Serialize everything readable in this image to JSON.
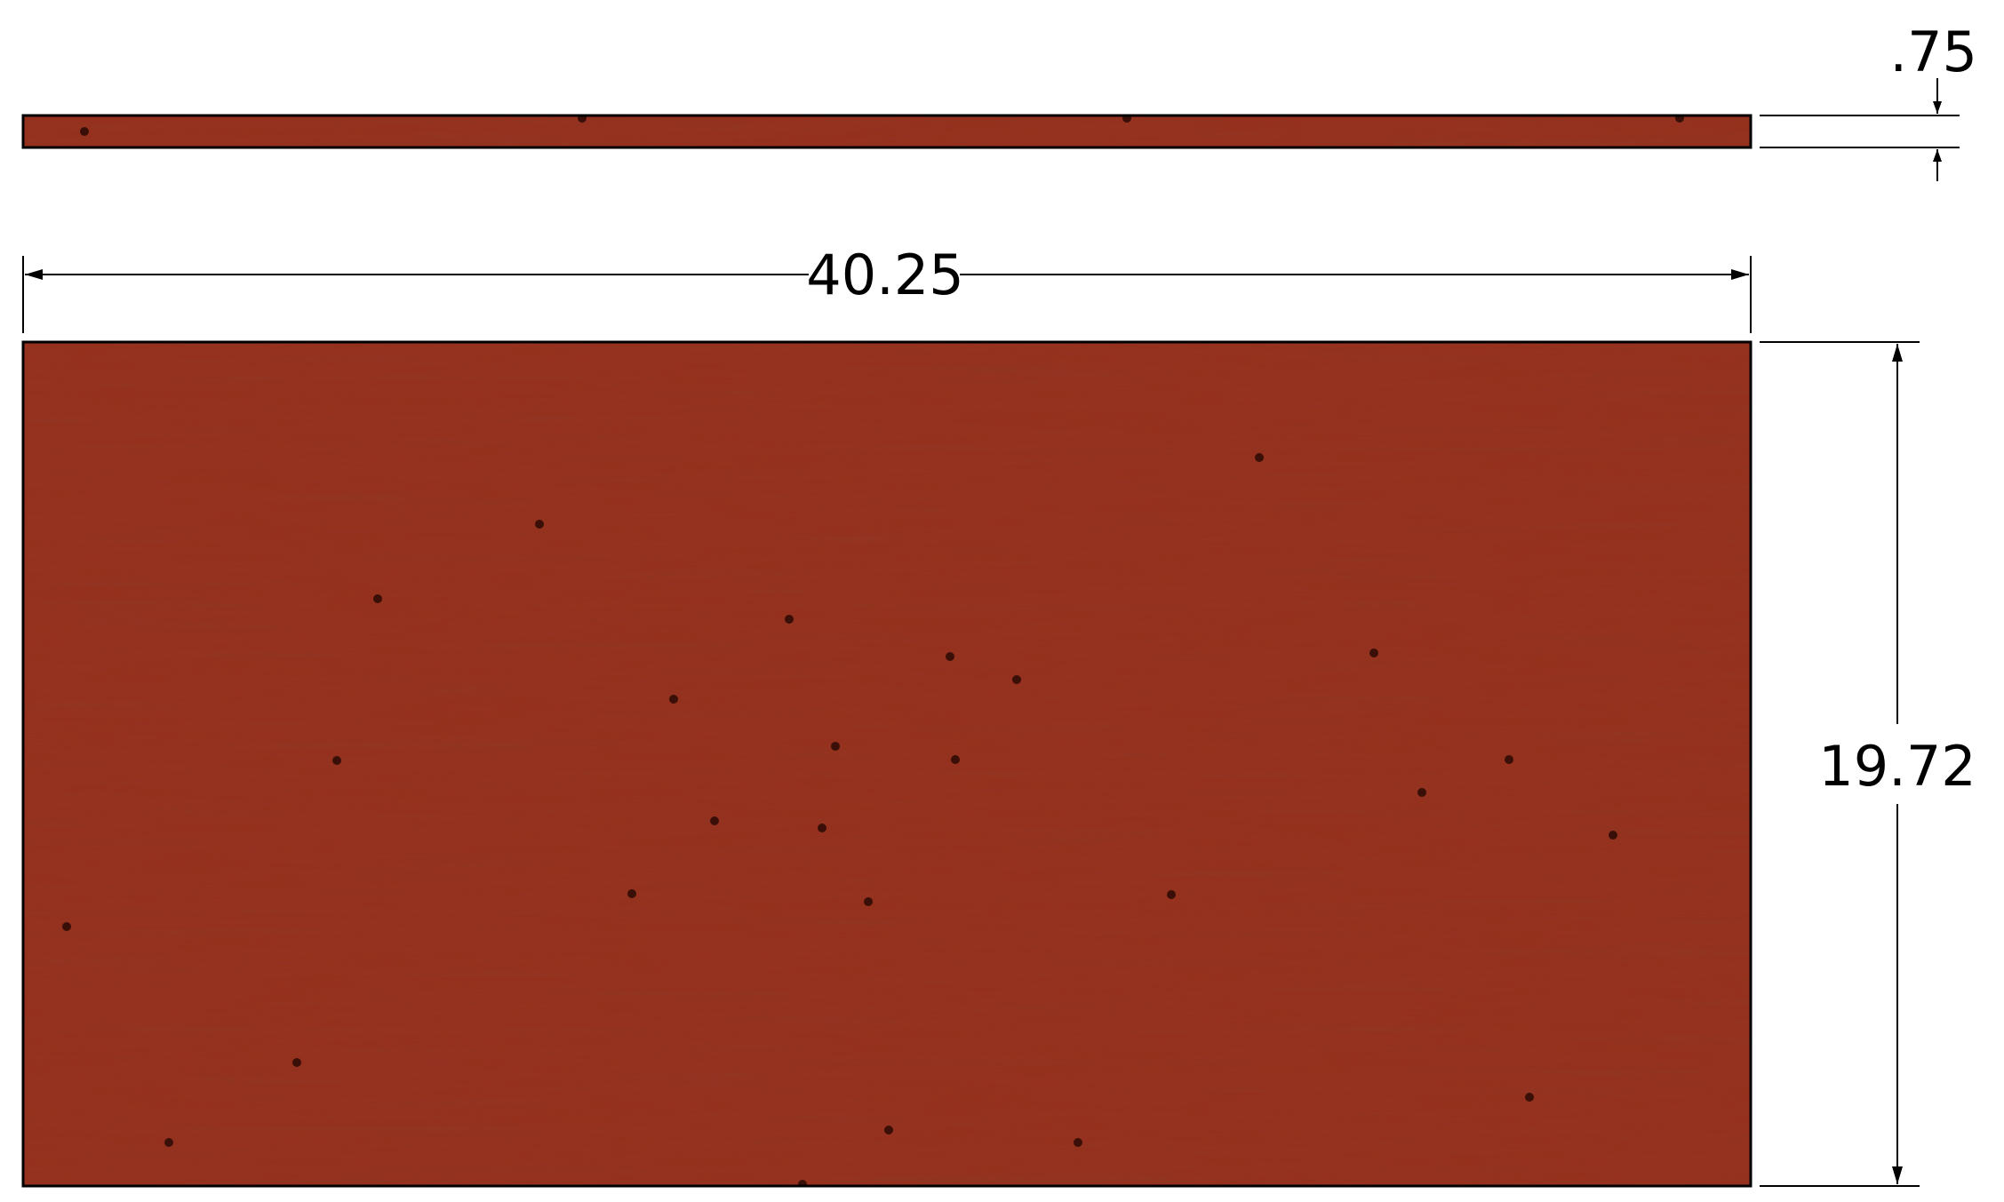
{
  "dimensions": {
    "thickness": ".75",
    "length": "40.25",
    "width": "19.72"
  },
  "colors": {
    "wood": "#95311f",
    "wood_dark": "#7f2818",
    "pores": "#3a0f07",
    "line": "#000000"
  }
}
